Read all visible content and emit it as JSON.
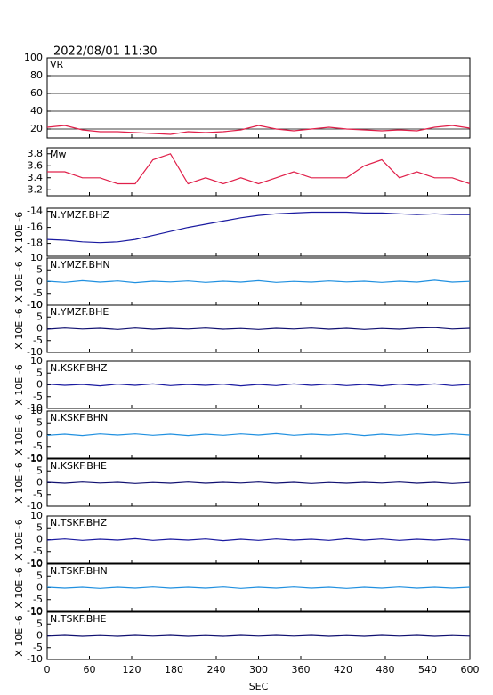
{
  "chart_data": [
    {
      "type": "line",
      "title": "2022/08/01 11:30",
      "label": "VR",
      "color": "#e0204a",
      "grid": true,
      "x": [
        0,
        25,
        50,
        75,
        100,
        125,
        150,
        175,
        200,
        225,
        250,
        275,
        300,
        325,
        350,
        375,
        400,
        425,
        450,
        475,
        500,
        525,
        550,
        575,
        600
      ],
      "values": [
        22,
        24,
        19,
        17,
        17,
        16,
        15,
        14,
        17,
        16,
        17,
        19,
        24,
        20,
        18,
        20,
        22,
        20,
        19,
        18,
        19,
        18,
        22,
        24,
        21
      ],
      "xlim": [
        0,
        600
      ],
      "ylim": [
        10,
        100
      ],
      "yticks": [
        20,
        40,
        60,
        80,
        100
      ]
    },
    {
      "type": "line",
      "label": "Mw",
      "color": "#e0204a",
      "x": [
        0,
        25,
        50,
        75,
        100,
        125,
        150,
        175,
        200,
        225,
        250,
        275,
        300,
        325,
        350,
        375,
        400,
        425,
        450,
        475,
        500,
        525,
        550,
        575,
        600
      ],
      "values": [
        3.5,
        3.5,
        3.4,
        3.4,
        3.3,
        3.3,
        3.7,
        3.8,
        3.3,
        3.4,
        3.3,
        3.4,
        3.3,
        3.4,
        3.5,
        3.4,
        3.4,
        3.4,
        3.6,
        3.7,
        3.4,
        3.5,
        3.4,
        3.4,
        3.3
      ],
      "xlim": [
        0,
        600
      ],
      "ylim": [
        3.1,
        3.9
      ],
      "yticks": [
        3.2,
        3.4,
        3.6,
        3.8
      ]
    },
    {
      "type": "line",
      "label": "N.YMZF.BHZ",
      "ylabel": "X 10E -6",
      "color": "#1a1aa0",
      "x": [
        0,
        25,
        50,
        75,
        100,
        125,
        150,
        175,
        200,
        225,
        250,
        275,
        300,
        325,
        350,
        375,
        400,
        425,
        450,
        475,
        500,
        525,
        550,
        575,
        600
      ],
      "values": [
        -17.5,
        -17.6,
        -17.8,
        -17.9,
        -17.8,
        -17.5,
        -17.0,
        -16.5,
        -16.0,
        -15.6,
        -15.2,
        -14.8,
        -14.5,
        -14.3,
        -14.2,
        -14.1,
        -14.1,
        -14.1,
        -14.2,
        -14.2,
        -14.3,
        -14.4,
        -14.3,
        -14.4,
        -14.4
      ],
      "xlim": [
        0,
        600
      ],
      "ylim": [
        -19.6,
        -13.6
      ],
      "yticks": [
        -14,
        -16,
        -18
      ]
    },
    {
      "type": "line",
      "label": "N.YMZF.BHN",
      "ylabel": "X 10E -6",
      "color": "#2090e0",
      "x": [
        0,
        25,
        50,
        75,
        100,
        125,
        150,
        175,
        200,
        225,
        250,
        275,
        300,
        325,
        350,
        375,
        400,
        425,
        450,
        475,
        500,
        525,
        550,
        575,
        600
      ],
      "values": [
        0.2,
        -0.3,
        0.4,
        -0.2,
        0.3,
        -0.4,
        0.2,
        -0.1,
        0.3,
        -0.3,
        0.2,
        -0.2,
        0.4,
        -0.3,
        0.1,
        -0.2,
        0.3,
        -0.1,
        0.2,
        -0.3,
        0.2,
        -0.2,
        0.6,
        -0.2,
        0.1
      ],
      "xlim": [
        0,
        600
      ],
      "ylim": [
        -10,
        10
      ],
      "yticks": [
        -10,
        -5,
        0,
        5,
        10
      ]
    },
    {
      "type": "line",
      "label": "N.YMZF.BHE",
      "ylabel": "X 10E -6",
      "color": "#101070",
      "x": [
        0,
        25,
        50,
        75,
        100,
        125,
        150,
        175,
        200,
        225,
        250,
        275,
        300,
        325,
        350,
        375,
        400,
        425,
        450,
        475,
        500,
        525,
        550,
        575,
        600
      ],
      "values": [
        -0.2,
        0.3,
        -0.1,
        0.2,
        -0.3,
        0.3,
        -0.2,
        0.2,
        -0.1,
        0.3,
        -0.2,
        0.1,
        -0.3,
        0.2,
        -0.1,
        0.3,
        -0.2,
        0.2,
        -0.3,
        0.1,
        -0.2,
        0.3,
        0.5,
        -0.1,
        0.2
      ],
      "xlim": [
        0,
        600
      ],
      "ylim": [
        -10,
        10
      ],
      "yticks": [
        -10,
        -5,
        0,
        5,
        10
      ]
    },
    {
      "type": "line",
      "label": "N.KSKF.BHZ",
      "ylabel": "X 10E -6",
      "color": "#1a1aa0",
      "x": [
        0,
        25,
        50,
        75,
        100,
        125,
        150,
        175,
        200,
        225,
        250,
        275,
        300,
        325,
        350,
        375,
        400,
        425,
        450,
        475,
        500,
        525,
        550,
        575,
        600
      ],
      "values": [
        0.3,
        -0.2,
        0.2,
        -0.4,
        0.3,
        -0.2,
        0.4,
        -0.3,
        0.2,
        -0.2,
        0.3,
        -0.4,
        0.2,
        -0.3,
        0.4,
        -0.2,
        0.3,
        -0.3,
        0.2,
        -0.4,
        0.3,
        -0.2,
        0.4,
        -0.3,
        0.2
      ],
      "xlim": [
        0,
        600
      ],
      "ylim": [
        -10,
        10
      ],
      "yticks": [
        -10,
        -5,
        0,
        5,
        10
      ]
    },
    {
      "type": "line",
      "label": "N.KSKF.BHN",
      "ylabel": "X 10E -6",
      "color": "#2090e0",
      "x": [
        0,
        25,
        50,
        75,
        100,
        125,
        150,
        175,
        200,
        225,
        250,
        275,
        300,
        325,
        350,
        375,
        400,
        425,
        450,
        475,
        500,
        525,
        550,
        575,
        600
      ],
      "values": [
        -0.3,
        0.2,
        -0.4,
        0.3,
        -0.2,
        0.3,
        -0.3,
        0.2,
        -0.4,
        0.2,
        -0.3,
        0.3,
        -0.2,
        0.4,
        -0.3,
        0.2,
        -0.2,
        0.3,
        -0.4,
        0.2,
        -0.3,
        0.3,
        -0.2,
        0.3,
        -0.2
      ],
      "xlim": [
        0,
        600
      ],
      "ylim": [
        -10,
        10
      ],
      "yticks": [
        -10,
        -5,
        0,
        5,
        10
      ]
    },
    {
      "type": "line",
      "label": "N.KSKF.BHE",
      "ylabel": "X 10E -6",
      "color": "#101070",
      "x": [
        0,
        25,
        50,
        75,
        100,
        125,
        150,
        175,
        200,
        225,
        250,
        275,
        300,
        325,
        350,
        375,
        400,
        425,
        450,
        475,
        500,
        525,
        550,
        575,
        600
      ],
      "values": [
        0.2,
        -0.2,
        0.3,
        -0.1,
        0.2,
        -0.3,
        0.1,
        -0.2,
        0.3,
        -0.2,
        0.2,
        -0.1,
        0.3,
        -0.2,
        0.2,
        -0.3,
        0.1,
        -0.2,
        0.2,
        -0.1,
        0.3,
        -0.2,
        0.2,
        -0.3,
        0.1
      ],
      "xlim": [
        0,
        600
      ],
      "ylim": [
        -10,
        10
      ],
      "yticks": [
        -10,
        -5,
        0,
        5,
        10
      ]
    },
    {
      "type": "line",
      "label": "N.TSKF.BHZ",
      "ylabel": "X 10E -6",
      "color": "#1a1aa0",
      "x": [
        0,
        25,
        50,
        75,
        100,
        125,
        150,
        175,
        200,
        225,
        250,
        275,
        300,
        325,
        350,
        375,
        400,
        425,
        450,
        475,
        500,
        525,
        550,
        575,
        600
      ],
      "values": [
        -0.2,
        0.3,
        -0.3,
        0.2,
        -0.2,
        0.4,
        -0.3,
        0.2,
        -0.2,
        0.3,
        -0.4,
        0.2,
        -0.3,
        0.3,
        -0.2,
        0.2,
        -0.3,
        0.4,
        -0.2,
        0.3,
        -0.3,
        0.2,
        -0.2,
        0.3,
        -0.2
      ],
      "xlim": [
        0,
        600
      ],
      "ylim": [
        -10,
        10
      ],
      "yticks": [
        -10,
        -5,
        0,
        5,
        10
      ]
    },
    {
      "type": "line",
      "label": "N.TSKF.BHN",
      "ylabel": "X 10E -6",
      "color": "#2090e0",
      "x": [
        0,
        25,
        50,
        75,
        100,
        125,
        150,
        175,
        200,
        225,
        250,
        275,
        300,
        325,
        350,
        375,
        400,
        425,
        450,
        475,
        500,
        525,
        550,
        575,
        600
      ],
      "values": [
        0.2,
        -0.2,
        0.2,
        -0.3,
        0.2,
        -0.2,
        0.3,
        -0.2,
        0.2,
        -0.2,
        0.3,
        -0.3,
        0.2,
        -0.2,
        0.3,
        -0.2,
        0.2,
        -0.3,
        0.2,
        -0.2,
        0.3,
        -0.2,
        0.2,
        -0.2,
        0.2
      ],
      "xlim": [
        0,
        600
      ],
      "ylim": [
        -10,
        10
      ],
      "yticks": [
        -10,
        -5,
        0,
        5,
        10
      ]
    },
    {
      "type": "line",
      "label": "N.TSKF.BHE",
      "ylabel": "X 10E -6",
      "xlabel": "SEC",
      "color": "#101070",
      "x": [
        0,
        25,
        50,
        75,
        100,
        125,
        150,
        175,
        200,
        225,
        250,
        275,
        300,
        325,
        350,
        375,
        400,
        425,
        450,
        475,
        500,
        525,
        550,
        575,
        600
      ],
      "values": [
        -0.1,
        0.2,
        -0.2,
        0.1,
        -0.2,
        0.2,
        -0.1,
        0.2,
        -0.2,
        0.1,
        -0.2,
        0.2,
        -0.1,
        0.2,
        -0.1,
        0.2,
        -0.2,
        0.1,
        -0.2,
        0.2,
        -0.1,
        0.2,
        -0.2,
        0.1,
        -0.1
      ],
      "xlim": [
        0,
        600
      ],
      "ylim": [
        -10,
        10
      ],
      "yticks": [
        -10,
        -5,
        0,
        5,
        10
      ],
      "xticks": [
        0,
        60,
        120,
        180,
        240,
        300,
        360,
        420,
        480,
        540,
        600
      ]
    }
  ]
}
